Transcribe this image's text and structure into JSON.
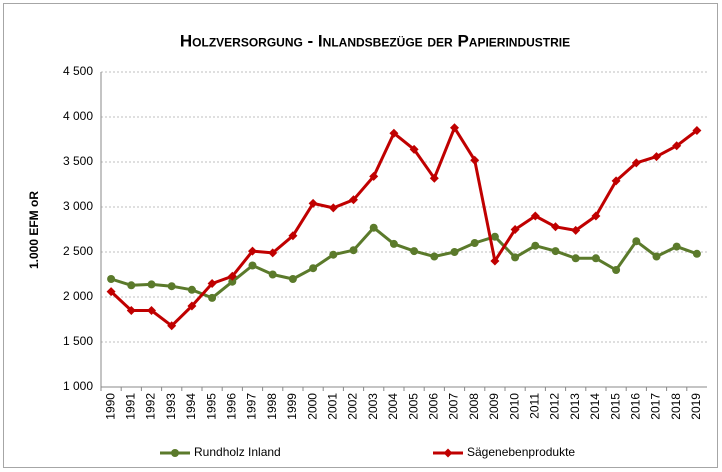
{
  "chart_data": {
    "type": "line",
    "title": "Holzversorgung - Inlandsbezüge der Papierindustrie",
    "y_label": "1.000 EFM oR",
    "categories": [
      "1990",
      "1991",
      "1992",
      "1993",
      "1994",
      "1995",
      "1996",
      "1997",
      "1998",
      "1999",
      "2000",
      "2001",
      "2002",
      "2003",
      "2004",
      "2005",
      "2006",
      "2007",
      "2008",
      "2009",
      "2010",
      "2011",
      "2012",
      "2013",
      "2014",
      "2015",
      "2016",
      "2017",
      "2018",
      "2019"
    ],
    "series": [
      {
        "name": "Rundholz Inland",
        "color": "#5b7a2b",
        "marker": "circle",
        "values": [
          2200,
          2130,
          2140,
          2120,
          2080,
          1990,
          2170,
          2350,
          2250,
          2200,
          2320,
          2470,
          2520,
          2770,
          2590,
          2510,
          2450,
          2500,
          2600,
          2670,
          2440,
          2570,
          2510,
          2430,
          2430,
          2300,
          2620,
          2450,
          2560,
          2480
        ]
      },
      {
        "name": "Sägenebenprodukte",
        "color": "#c00000",
        "marker": "diamond",
        "values": [
          2060,
          1850,
          1850,
          1680,
          1900,
          2150,
          2230,
          2510,
          2490,
          2680,
          3040,
          2990,
          3080,
          3340,
          3820,
          3640,
          3320,
          3880,
          3520,
          2400,
          2750,
          2900,
          2780,
          2740,
          2900,
          3290,
          3490,
          3560,
          3680,
          3850
        ]
      }
    ],
    "ylim": [
      1000,
      4500
    ],
    "yticks": [
      {
        "value": 1000,
        "label": "1 000"
      },
      {
        "value": 1500,
        "label": "1 500"
      },
      {
        "value": 2000,
        "label": "2 000"
      },
      {
        "value": 2500,
        "label": "2 500"
      },
      {
        "value": 3000,
        "label": "3 000"
      },
      {
        "value": 3500,
        "label": "3 500"
      },
      {
        "value": 4000,
        "label": "4 000"
      },
      {
        "value": 4500,
        "label": "4 500"
      }
    ],
    "grid": true,
    "legend": "bottom"
  }
}
